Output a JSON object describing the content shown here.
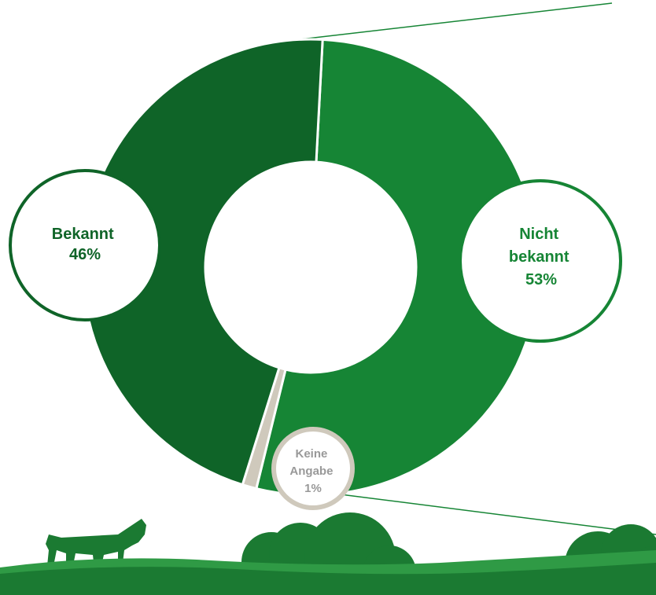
{
  "chart_data": {
    "type": "pie",
    "style": "donut",
    "categories": [
      "Bekannt",
      "Nicht bekannt",
      "Keine Angabe"
    ],
    "values": [
      46,
      53,
      1
    ],
    "labels": [
      {
        "lines": [
          "Bekannt",
          "46%"
        ]
      },
      {
        "lines": [
          "Nicht",
          "bekannt",
          "53%"
        ]
      },
      {
        "lines": [
          "Keine",
          "Angabe",
          "1%"
        ]
      }
    ],
    "colors": [
      "#0f6428",
      "#168535",
      "#cfc9bc"
    ],
    "label_colors": [
      "#0f6428",
      "#168535",
      "#999999"
    ]
  },
  "decor": {
    "ground_color": "#1b7a32",
    "ground_light": "#2f9a45",
    "icons": [
      "cow-icon",
      "tree-icon",
      "tree-icon",
      "tree-icon"
    ]
  }
}
